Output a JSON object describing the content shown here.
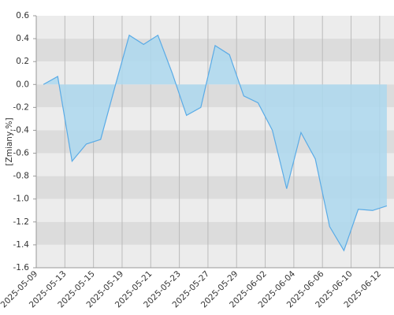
{
  "chart_data": {
    "type": "area",
    "y_label": "[Zmiany,%]",
    "x": [
      "2025-05-09",
      "2025-05-12",
      "2025-05-13",
      "2025-05-14",
      "2025-05-15",
      "2025-05-16",
      "2025-05-19",
      "2025-05-20",
      "2025-05-21",
      "2025-05-22",
      "2025-05-23",
      "2025-05-26",
      "2025-05-27",
      "2025-05-28",
      "2025-05-29",
      "2025-05-30",
      "2025-06-02",
      "2025-06-03",
      "2025-06-04",
      "2025-06-05",
      "2025-06-06",
      "2025-06-09",
      "2025-06-10",
      "2025-06-11",
      "2025-06-12"
    ],
    "values": [
      0.0,
      0.07,
      -0.67,
      -0.52,
      -0.48,
      -0.02,
      0.43,
      0.35,
      0.43,
      0.1,
      -0.27,
      -0.2,
      0.34,
      0.26,
      -0.1,
      -0.16,
      -0.4,
      -0.91,
      -0.42,
      -0.65,
      -1.24,
      -1.45,
      -1.09,
      -1.1,
      -1.06
    ],
    "color": "#5aabe6",
    "fill": "#add8ee",
    "ylim": [
      -1.6,
      0.6
    ],
    "yticks": [
      0.6,
      0.4,
      0.2,
      {
        "value": 0,
        "label": "0.0"
      },
      -0.2,
      -0.4,
      -0.6,
      -0.8,
      {
        "value": -1,
        "label": "-1.0"
      },
      -1.2,
      -1.4,
      -1.6
    ],
    "xticks": [
      "2025-05-09",
      "2025-05-13",
      "2025-05-15",
      "2025-05-19",
      "2025-05-21",
      "2025-05-23",
      "2025-05-27",
      "2025-05-29",
      "2025-06-02",
      "2025-06-04",
      "2025-06-06",
      "2025-06-10",
      "2025-06-12"
    ],
    "grid": true
  }
}
